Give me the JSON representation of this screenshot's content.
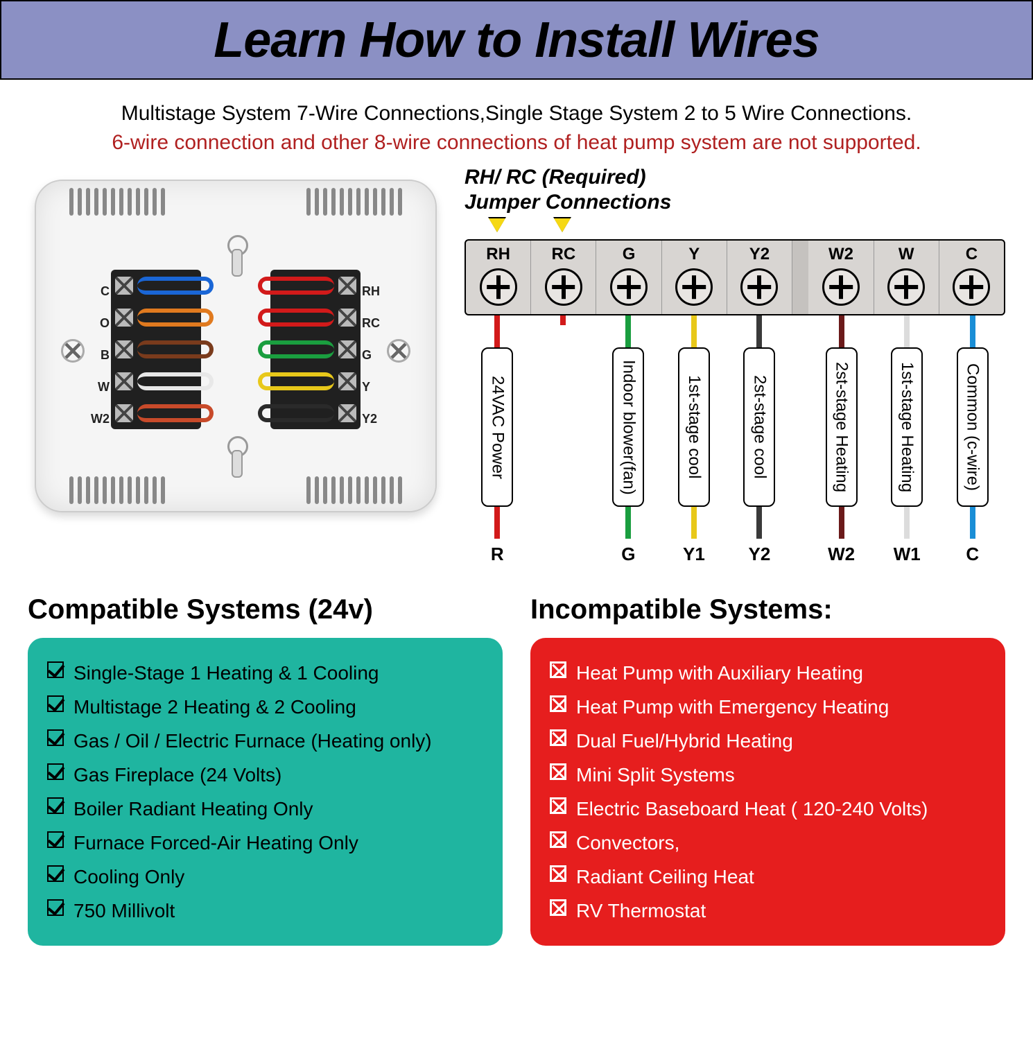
{
  "title": "Learn How to Install Wires",
  "subtitle": {
    "line1": "Multistage System 7-Wire Connections,Single Stage System 2 to 5 Wire Connections.",
    "line2": "6-wire connection and other 8-wire connections of heat pump system are not supported."
  },
  "photo": {
    "left_labels": [
      "C",
      "O",
      "B",
      "W",
      "W2"
    ],
    "right_labels": [
      "RH",
      "RC",
      "G",
      "Y",
      "Y2"
    ],
    "left_wire_colors": [
      "#1a66d6",
      "#e07a1f",
      "#7a3b1c",
      "#e8e8e8",
      "#c84a2a"
    ],
    "right_wire_colors": [
      "#d21a1a",
      "#d21a1a",
      "#1a9e3f",
      "#e8c81a",
      "#2a2a2a"
    ]
  },
  "diagram": {
    "header": "RH/ RC (Required)",
    "subheader": "Jumper Connections",
    "arrow_positions_pct": [
      4.5,
      16.5
    ],
    "terminals": [
      {
        "label": "RH",
        "wire_color": "#d21a1a",
        "desc": "24VAC Power",
        "bottom": "R"
      },
      {
        "label": "RC",
        "wire_color": "#d21a1a",
        "desc": null,
        "bottom": null
      },
      {
        "label": "G",
        "wire_color": "#1a9e3f",
        "desc": "Indoor blower(fan)",
        "bottom": "G"
      },
      {
        "label": "Y",
        "wire_color": "#e8c81a",
        "desc": "1st-stage cool",
        "bottom": "Y1"
      },
      {
        "label": "Y2",
        "wire_color": "#3a3a3a",
        "desc": "2st-stage cool",
        "bottom": "Y2"
      },
      {
        "gap": true
      },
      {
        "label": "W2",
        "wire_color": "#6b1a1a",
        "desc": "2st-stage Heating",
        "bottom": "W2"
      },
      {
        "label": "W",
        "wire_color": "#dcdcdc",
        "desc": "1st-stage Heating",
        "bottom": "W1"
      },
      {
        "label": "C",
        "wire_color": "#1a8ed6",
        "desc": "Common (c-wire)",
        "bottom": "C"
      }
    ]
  },
  "compatible": {
    "title": "Compatible Systems (24v)",
    "bg": "#1fb5a0",
    "items": [
      "Single-Stage 1 Heating & 1 Cooling",
      "Multistage 2 Heating & 2 Cooling",
      "Gas / Oil / Electric Furnace (Heating only)",
      "Gas Fireplace (24 Volts)",
      "Boiler Radiant Heating Only",
      "Furnace Forced-Air Heating Only",
      "Cooling Only",
      "750 Millivolt"
    ]
  },
  "incompatible": {
    "title": "Incompatible Systems:",
    "bg": "#e61e1e",
    "items": [
      "Heat Pump with Auxiliary Heating",
      "Heat Pump with Emergency Heating",
      "Dual Fuel/Hybrid Heating",
      "Mini Split Systems",
      "Electric Baseboard Heat ( 120-240 Volts)",
      "Convectors,",
      "Radiant Ceiling Heat",
      "RV Thermostat"
    ]
  }
}
